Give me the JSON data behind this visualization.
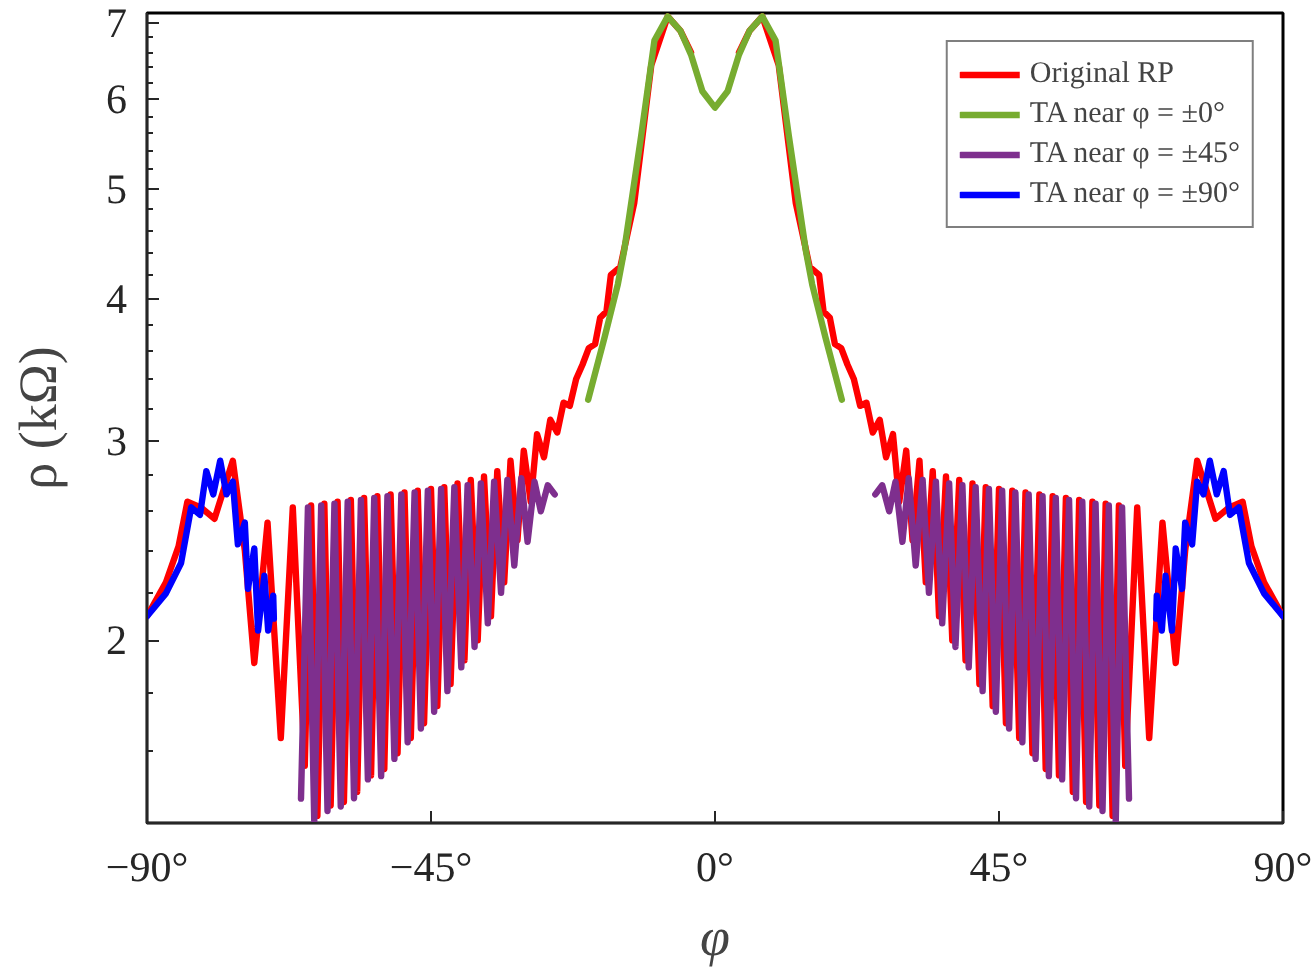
{
  "chart_data": {
    "type": "line",
    "xlabel": "φ",
    "ylabel": "ρ (kΩ)",
    "log": true,
    "legend": "top right",
    "xlim": [
      -90,
      90
    ],
    "ylim": [
      1.38,
      7.15
    ],
    "xticks": [
      {
        "value": -90,
        "label": "−90°"
      },
      {
        "value": -45,
        "label": "−45°"
      },
      {
        "value": 0,
        "label": "0°"
      },
      {
        "value": 45,
        "label": "45°"
      },
      {
        "value": 90,
        "label": "90°"
      }
    ],
    "yticks": [
      {
        "value": 1.6,
        "label": null
      },
      {
        "value": 1.8,
        "label": null
      },
      2,
      {
        "value": 2.2,
        "label": null
      },
      {
        "value": 2.4,
        "label": null
      },
      {
        "value": 2.6,
        "label": null
      },
      {
        "value": 2.8,
        "label": null
      },
      3,
      {
        "value": 3.2,
        "label": null
      },
      {
        "value": 3.4,
        "label": null
      },
      {
        "value": 3.6,
        "label": null
      },
      {
        "value": 3.8,
        "label": null
      },
      4,
      {
        "value": 4.2,
        "label": null
      },
      {
        "value": 4.4,
        "label": null
      },
      {
        "value": 4.6,
        "label": null
      },
      {
        "value": 4.8,
        "label": null
      },
      5,
      {
        "value": 5.2,
        "label": null
      },
      {
        "value": 5.4,
        "label": null
      },
      {
        "value": 5.6,
        "label": null
      },
      {
        "value": 5.8,
        "label": null
      },
      6,
      {
        "value": 6.2,
        "label": null
      },
      {
        "value": 6.4,
        "label": null
      },
      {
        "value": 6.6,
        "label": null
      },
      {
        "value": 6.8,
        "label": null
      },
      7
    ],
    "series": [
      {
        "name": "Original RP",
        "color": "#ff0000",
        "x": [
          -90,
          -87,
          -85,
          -83.6,
          -81.5,
          -79.3,
          -76.4,
          -74.5,
          -73.0,
          -70.9,
          -68.8,
          -66.9,
          -65.0,
          -64.0,
          -63.0,
          -61.9,
          -60.9,
          -59.8,
          -58.8,
          -57.7,
          -56.7,
          -55.6,
          -54.5,
          -53.5,
          -52.4,
          -51.4,
          -50.3,
          -49.2,
          -48.2,
          -47.1,
          -46.1,
          -45.0,
          -44.0,
          -42.9,
          -41.9,
          -40.8,
          -39.7,
          -38.7,
          -37.6,
          -36.6,
          -35.5,
          -34.5,
          -33.4,
          -32.4,
          -31.3,
          -30.3,
          -29.2,
          -28.2,
          -27.1,
          -26.1,
          -25.0,
          -24.0,
          -23.0,
          -22.0,
          -21.0,
          -20.0,
          -19.0,
          -18.2,
          -17.2,
          -16.5,
          -15.0,
          -12.8,
          -10.1,
          -7.5,
          -5.5,
          -3.8,
          -2,
          0,
          2,
          3.8,
          5.5,
          7.5,
          10.1,
          12.8,
          15.0,
          16.5,
          17.2,
          18.2,
          19.0,
          20.0,
          21.0,
          22.0,
          23.0,
          24.0,
          25.0,
          26.1,
          27.1,
          28.2,
          29.2,
          30.3,
          31.3,
          32.4,
          33.4,
          34.5,
          35.5,
          36.6,
          37.6,
          38.7,
          39.7,
          40.8,
          41.9,
          42.9,
          44.0,
          45.0,
          46.1,
          47.1,
          48.2,
          49.2,
          50.3,
          51.4,
          52.4,
          53.5,
          54.5,
          55.6,
          56.7,
          57.7,
          58.8,
          59.8,
          60.9,
          61.9,
          63.0,
          64.0,
          65.0,
          66.9,
          68.8,
          70.9,
          73.0,
          74.5,
          76.4,
          79.3,
          81.5,
          83.6,
          85,
          87,
          90
        ],
        "values": [
          2.1,
          2.25,
          2.42,
          2.65,
          2.62,
          2.56,
          2.88,
          2.4,
          1.91,
          2.54,
          1.64,
          2.62,
          1.55,
          2.63,
          1.4,
          2.64,
          1.43,
          2.65,
          1.44,
          2.66,
          1.47,
          2.67,
          1.52,
          2.68,
          1.54,
          2.69,
          1.59,
          2.7,
          1.64,
          2.71,
          1.69,
          2.72,
          1.75,
          2.73,
          1.83,
          2.75,
          1.92,
          2.77,
          2.0,
          2.79,
          2.1,
          2.82,
          2.25,
          2.88,
          2.45,
          2.94,
          2.65,
          3.04,
          2.9,
          3.13,
          3.05,
          3.24,
          3.22,
          3.4,
          3.5,
          3.62,
          3.65,
          3.85,
          3.9,
          4.2,
          4.27,
          4.86,
          6.43,
          7.1,
          6.9,
          6.6,
          null,
          null,
          null,
          6.6,
          6.9,
          7.1,
          6.43,
          4.86,
          4.27,
          4.2,
          3.9,
          3.85,
          3.65,
          3.62,
          3.5,
          3.4,
          3.22,
          3.24,
          3.05,
          3.13,
          2.9,
          3.04,
          2.65,
          2.94,
          2.45,
          2.88,
          2.25,
          2.82,
          2.1,
          2.79,
          2.0,
          2.77,
          1.92,
          2.75,
          1.83,
          2.73,
          1.75,
          2.72,
          1.69,
          2.71,
          1.64,
          2.7,
          1.59,
          2.69,
          1.54,
          2.68,
          1.52,
          2.67,
          1.47,
          2.66,
          1.44,
          2.65,
          1.43,
          2.64,
          1.4,
          2.63,
          1.55,
          2.62,
          1.64,
          2.54,
          1.91,
          2.4,
          2.88,
          2.56,
          2.62,
          2.65,
          2.42,
          2.25,
          2.1
        ]
      },
      {
        "name": "TA near φ = ±0°",
        "color": "#77ac30",
        "x": [
          -20.1,
          -17.5,
          -15.4,
          -14.4,
          -11.7,
          -9.6,
          -7.5,
          -5.5,
          -3.8,
          -2,
          0,
          2,
          3.8,
          5.5,
          7.5,
          9.6,
          11.7,
          14.4,
          15.4,
          17.5,
          20.1
        ],
        "values": [
          3.26,
          3.7,
          4.12,
          4.41,
          5.57,
          6.76,
          7.1,
          6.9,
          6.57,
          6.1,
          5.9,
          6.1,
          6.57,
          6.9,
          7.1,
          6.76,
          5.57,
          4.41,
          4.12,
          3.7,
          3.26
        ]
      },
      {
        "name": "TA near φ = ±45°",
        "color": "#7e2f8e",
        "x": [
          -65.6,
          -64.5,
          -63.5,
          -62.4,
          -61.4,
          -60.3,
          -59.3,
          -58.2,
          -57.2,
          -56.1,
          -55.0,
          -54.0,
          -52.9,
          -51.9,
          -50.8,
          -49.7,
          -48.7,
          -47.6,
          -46.6,
          -45.5,
          -44.5,
          -43.4,
          -42.4,
          -41.3,
          -40.2,
          -39.2,
          -38.1,
          -37.1,
          -36.0,
          -35.0,
          -33.9,
          -32.9,
          -31.8,
          -30.7,
          -29.7,
          -28.6,
          -27.6,
          -26.5,
          -25.4,
          null,
          25.4,
          26.5,
          27.6,
          28.6,
          29.7,
          30.7,
          31.8,
          32.9,
          33.9,
          35.0,
          36.0,
          37.1,
          38.1,
          39.2,
          40.2,
          41.3,
          42.4,
          43.4,
          44.5,
          45.5,
          46.6,
          47.6,
          48.7,
          49.7,
          50.8,
          51.9,
          52.9,
          54.0,
          55.0,
          56.1,
          57.2,
          58.2,
          59.3,
          60.3,
          61.4,
          62.4,
          63.5,
          64.5,
          65.6
        ],
        "values": [
          1.45,
          2.62,
          1.385,
          2.63,
          1.414,
          2.64,
          1.427,
          2.65,
          1.451,
          2.66,
          1.508,
          2.67,
          1.518,
          2.68,
          1.572,
          2.69,
          1.626,
          2.7,
          1.672,
          2.71,
          1.73,
          2.72,
          1.804,
          2.73,
          1.893,
          2.74,
          1.973,
          2.75,
          2.07,
          2.76,
          2.202,
          2.77,
          2.328,
          2.78,
          2.443,
          2.76,
          2.599,
          2.74,
          2.69,
          null,
          2.69,
          2.74,
          2.599,
          2.76,
          2.443,
          2.78,
          2.328,
          2.77,
          2.202,
          2.76,
          2.07,
          2.75,
          1.973,
          2.74,
          1.893,
          2.73,
          1.804,
          2.72,
          1.73,
          2.71,
          1.672,
          2.7,
          1.626,
          2.69,
          1.572,
          2.68,
          1.518,
          2.67,
          1.508,
          2.66,
          1.451,
          2.65,
          1.427,
          2.64,
          1.414,
          2.63,
          1.385,
          2.62,
          1.45
        ]
      },
      {
        "name": "TA near φ = ±90°",
        "color": "#0000ff",
        "x": [
          -90,
          -87,
          -84.6,
          -83.0,
          -81.6,
          -80.6,
          -79.5,
          -78.4,
          -77.4,
          -76.4,
          -75.6,
          -74.5,
          -74.0,
          -73.0,
          -72.4,
          -71.4,
          -70.8,
          -70.0,
          -69.9,
          null,
          69.9,
          70.0,
          70.8,
          71.4,
          72.4,
          73.0,
          74.0,
          74.5,
          75.6,
          76.4,
          77.4,
          78.4,
          79.5,
          80.6,
          81.6,
          83.0,
          84.6,
          87,
          90
        ],
        "values": [
          2.1,
          2.2,
          2.34,
          2.62,
          2.58,
          2.82,
          2.69,
          2.88,
          2.69,
          2.76,
          2.43,
          2.54,
          2.22,
          2.41,
          2.04,
          2.28,
          2.04,
          2.19,
          2.09,
          null,
          2.09,
          2.19,
          2.04,
          2.28,
          2.04,
          2.41,
          2.22,
          2.54,
          2.43,
          2.76,
          2.69,
          2.88,
          2.69,
          2.82,
          2.58,
          2.62,
          2.34,
          2.2,
          2.1
        ]
      }
    ]
  }
}
